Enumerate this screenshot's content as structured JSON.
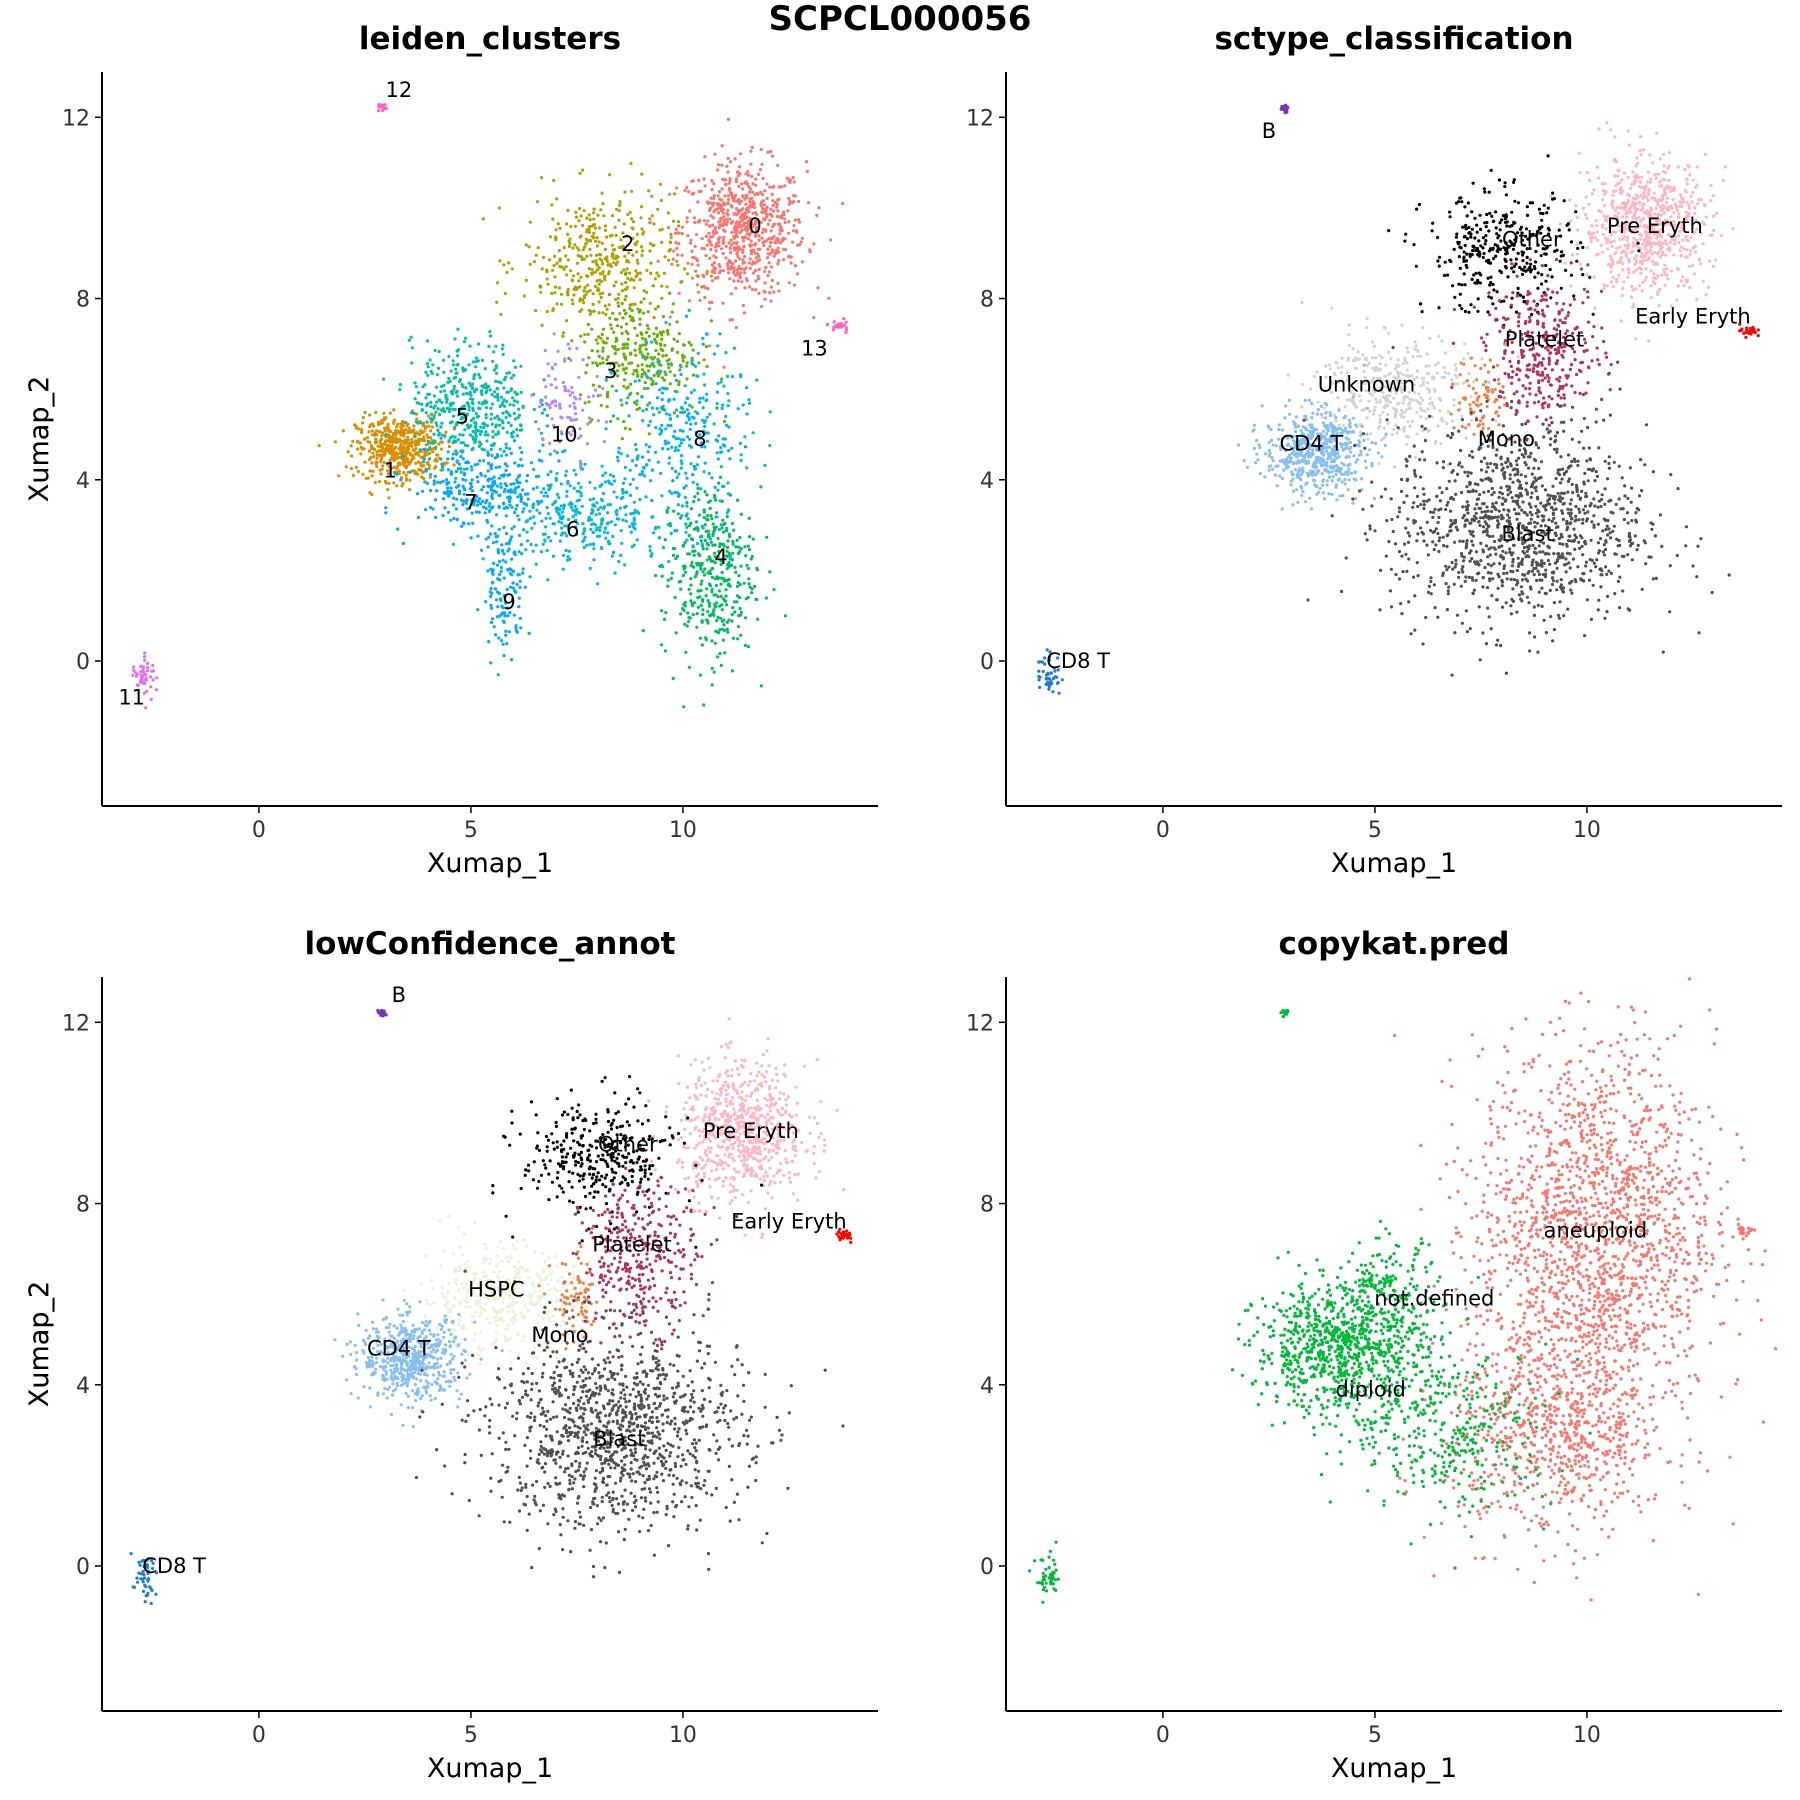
{
  "figure": {
    "title": "SCPCL000056"
  },
  "chart_data": [
    {
      "type": "scatter",
      "title": "leiden_clusters",
      "xlabel": "Xumap_1",
      "ylabel": "Xumap_2",
      "xlim": [
        -3.7,
        14.6
      ],
      "ylim": [
        -3.2,
        13.0
      ],
      "xticks": [
        0,
        5,
        10
      ],
      "yticks": [
        0,
        4,
        8,
        12
      ],
      "grid": false,
      "legend": "none",
      "clusters": [
        {
          "name": "0",
          "color": "#F8766D",
          "cx": 11.4,
          "cy": 9.5,
          "sx": 0.75,
          "sy": 0.75,
          "n": 700
        },
        {
          "name": "1",
          "color": "#DB8E00",
          "cx": 3.3,
          "cy": 4.7,
          "sx": 0.5,
          "sy": 0.35,
          "n": 500
        },
        {
          "name": "2",
          "color": "#AEA200",
          "cx": 8.0,
          "cy": 8.8,
          "sx": 0.9,
          "sy": 0.75,
          "n": 400
        },
        {
          "name": "3",
          "color": "#64B200",
          "cx": 9.0,
          "cy": 6.8,
          "sx": 0.7,
          "sy": 0.7,
          "n": 300
        },
        {
          "name": "4",
          "color": "#00BD5C",
          "cx": 10.6,
          "cy": 2.0,
          "sx": 0.55,
          "sy": 1.0,
          "n": 400
        },
        {
          "name": "5",
          "color": "#00C1A7",
          "cx": 5.0,
          "cy": 5.6,
          "sx": 0.7,
          "sy": 0.7,
          "n": 450
        },
        {
          "name": "6",
          "color": "#00BADE",
          "cx": 7.6,
          "cy": 3.2,
          "sx": 1.1,
          "sy": 0.55,
          "n": 350
        },
        {
          "name": "7",
          "color": "#00A6FF",
          "cx": 5.2,
          "cy": 3.8,
          "sx": 0.8,
          "sy": 0.45,
          "n": 250
        },
        {
          "name": "8",
          "color": "#00B4F0",
          "cx": 10.0,
          "cy": 5.0,
          "sx": 0.8,
          "sy": 1.0,
          "n": 300
        },
        {
          "name": "9",
          "color": "#00A9FF",
          "cx": 5.8,
          "cy": 1.6,
          "sx": 0.25,
          "sy": 0.7,
          "n": 120
        },
        {
          "name": "10",
          "color": "#B385FF",
          "cx": 7.3,
          "cy": 5.8,
          "sx": 0.4,
          "sy": 0.6,
          "n": 90
        },
        {
          "name": "11",
          "color": "#E76BF3",
          "cx": -2.7,
          "cy": -0.3,
          "sx": 0.15,
          "sy": 0.25,
          "n": 45
        },
        {
          "name": "12",
          "color": "#FF61C9",
          "cx": 2.9,
          "cy": 12.2,
          "sx": 0.05,
          "sy": 0.05,
          "n": 14
        },
        {
          "name": "13",
          "color": "#FF62BC",
          "cx": 13.7,
          "cy": 7.4,
          "sx": 0.12,
          "sy": 0.08,
          "n": 20
        }
      ],
      "labels": [
        {
          "text": "0",
          "x": 11.7,
          "y": 9.6
        },
        {
          "text": "1",
          "x": 3.1,
          "y": 4.2
        },
        {
          "text": "2",
          "x": 8.7,
          "y": 9.2
        },
        {
          "text": "3",
          "x": 8.3,
          "y": 6.4
        },
        {
          "text": "4",
          "x": 10.9,
          "y": 2.3
        },
        {
          "text": "5",
          "x": 4.8,
          "y": 5.4
        },
        {
          "text": "6",
          "x": 7.4,
          "y": 2.9
        },
        {
          "text": "7",
          "x": 5.0,
          "y": 3.5
        },
        {
          "text": "8",
          "x": 10.4,
          "y": 4.9
        },
        {
          "text": "9",
          "x": 5.9,
          "y": 1.3
        },
        {
          "text": "10",
          "x": 7.2,
          "y": 5.0
        },
        {
          "text": "11",
          "x": -3.0,
          "y": -0.8
        },
        {
          "text": "12",
          "x": 3.3,
          "y": 12.6
        },
        {
          "text": "13",
          "x": 13.1,
          "y": 6.9
        }
      ]
    },
    {
      "type": "scatter",
      "title": "sctype_classification",
      "xlabel": "Xumap_1",
      "ylabel": "Xumap_2",
      "xlim": [
        -3.7,
        14.6
      ],
      "ylim": [
        -3.2,
        13.0
      ],
      "xticks": [
        0,
        5,
        10
      ],
      "yticks": [
        0,
        4,
        8,
        12
      ],
      "grid": false,
      "legend": "none",
      "clusters": [
        {
          "name": "Pre Eryth",
          "color": "#FFB6C1",
          "cx": 11.4,
          "cy": 9.6,
          "sx": 0.75,
          "sy": 0.75,
          "n": 700
        },
        {
          "name": "Other",
          "color": "#000000",
          "cx": 8.0,
          "cy": 9.0,
          "sx": 0.9,
          "sy": 0.65,
          "n": 350
        },
        {
          "name": "Platelet",
          "color": "#B03060",
          "cx": 9.0,
          "cy": 6.8,
          "sx": 0.7,
          "sy": 0.8,
          "n": 350
        },
        {
          "name": "Unknown",
          "color": "#D3D3D3",
          "cx": 5.4,
          "cy": 6.0,
          "sx": 0.9,
          "sy": 0.6,
          "n": 400
        },
        {
          "name": "CD4 T",
          "color": "#87BFEE",
          "cx": 3.6,
          "cy": 4.6,
          "sx": 0.6,
          "sy": 0.45,
          "n": 550
        },
        {
          "name": "Mono",
          "color": "#F08040",
          "cx": 7.5,
          "cy": 5.8,
          "sx": 0.3,
          "sy": 0.5,
          "n": 80
        },
        {
          "name": "Blast",
          "color": "#505050",
          "cx": 8.4,
          "cy": 3.0,
          "sx": 1.5,
          "sy": 1.1,
          "n": 1200
        },
        {
          "name": "Early Eryth",
          "color": "#FF0000",
          "cx": 13.8,
          "cy": 7.3,
          "sx": 0.1,
          "sy": 0.07,
          "n": 25
        },
        {
          "name": "CD8 T",
          "color": "#1E7CD8",
          "cx": -2.7,
          "cy": -0.3,
          "sx": 0.15,
          "sy": 0.25,
          "n": 45
        },
        {
          "name": "B",
          "color": "#7B2FBE",
          "cx": 2.9,
          "cy": 12.2,
          "sx": 0.05,
          "sy": 0.05,
          "n": 14
        }
      ],
      "labels": [
        {
          "text": "B",
          "x": 2.5,
          "y": 11.7
        },
        {
          "text": "Pre Eryth",
          "x": 11.6,
          "y": 9.6
        },
        {
          "text": "Other",
          "x": 8.7,
          "y": 9.3
        },
        {
          "text": "Early Eryth",
          "x": 12.5,
          "y": 7.6
        },
        {
          "text": "Platelet",
          "x": 9.0,
          "y": 7.1
        },
        {
          "text": "Unknown",
          "x": 4.8,
          "y": 6.1
        },
        {
          "text": "CD4 T",
          "x": 3.5,
          "y": 4.8
        },
        {
          "text": "Mono",
          "x": 8.1,
          "y": 4.9
        },
        {
          "text": "Blast",
          "x": 8.6,
          "y": 2.8
        },
        {
          "text": "CD8 T",
          "x": -2.0,
          "y": 0.0
        }
      ]
    },
    {
      "type": "scatter",
      "title": "lowConfidence_annot",
      "xlabel": "Xumap_1",
      "ylabel": "Xumap_2",
      "xlim": [
        -3.7,
        14.6
      ],
      "ylim": [
        -3.2,
        13.0
      ],
      "xticks": [
        0,
        5,
        10
      ],
      "yticks": [
        0,
        4,
        8,
        12
      ],
      "grid": false,
      "legend": "none",
      "clusters": [
        {
          "name": "Pre Eryth",
          "color": "#FFB6C1",
          "cx": 11.4,
          "cy": 9.6,
          "sx": 0.75,
          "sy": 0.75,
          "n": 700
        },
        {
          "name": "Other",
          "color": "#000000",
          "cx": 8.0,
          "cy": 9.0,
          "sx": 0.9,
          "sy": 0.65,
          "n": 350
        },
        {
          "name": "Platelet",
          "color": "#B03060",
          "cx": 9.0,
          "cy": 6.8,
          "sx": 0.7,
          "sy": 0.8,
          "n": 350
        },
        {
          "name": "HSPC",
          "color": "#EEF0D8",
          "cx": 5.6,
          "cy": 5.9,
          "sx": 0.9,
          "sy": 0.6,
          "n": 400
        },
        {
          "name": "CD4 T",
          "color": "#87BFEE",
          "cx": 3.6,
          "cy": 4.6,
          "sx": 0.6,
          "sy": 0.45,
          "n": 550
        },
        {
          "name": "Mono",
          "color": "#F08040",
          "cx": 7.5,
          "cy": 5.8,
          "sx": 0.3,
          "sy": 0.5,
          "n": 80
        },
        {
          "name": "Blast",
          "color": "#505050",
          "cx": 8.4,
          "cy": 3.0,
          "sx": 1.5,
          "sy": 1.1,
          "n": 1200
        },
        {
          "name": "Early Eryth",
          "color": "#FF0000",
          "cx": 13.8,
          "cy": 7.3,
          "sx": 0.1,
          "sy": 0.07,
          "n": 25
        },
        {
          "name": "CD8 T",
          "color": "#1E7CD8",
          "cx": -2.7,
          "cy": -0.3,
          "sx": 0.15,
          "sy": 0.25,
          "n": 45
        },
        {
          "name": "B",
          "color": "#7B2FBE",
          "cx": 2.9,
          "cy": 12.2,
          "sx": 0.05,
          "sy": 0.05,
          "n": 14
        }
      ],
      "labels": [
        {
          "text": "B",
          "x": 3.3,
          "y": 12.6
        },
        {
          "text": "Pre Eryth",
          "x": 11.6,
          "y": 9.6
        },
        {
          "text": "Other",
          "x": 8.7,
          "y": 9.3
        },
        {
          "text": "Early Eryth",
          "x": 12.5,
          "y": 7.6
        },
        {
          "text": "Platelet",
          "x": 8.8,
          "y": 7.1
        },
        {
          "text": "HSPC",
          "x": 5.6,
          "y": 6.1
        },
        {
          "text": "CD4 T",
          "x": 3.3,
          "y": 4.8
        },
        {
          "text": "Mono",
          "x": 7.1,
          "y": 5.1
        },
        {
          "text": "Blast",
          "x": 8.5,
          "y": 2.8
        },
        {
          "text": "CD8 T",
          "x": -2.0,
          "y": 0.0
        }
      ]
    },
    {
      "type": "scatter",
      "title": "copykat.pred",
      "xlabel": "Xumap_1",
      "ylabel": "Xumap_2",
      "xlim": [
        -3.7,
        14.6
      ],
      "ylim": [
        -3.2,
        13.0
      ],
      "xticks": [
        0,
        5,
        10
      ],
      "yticks": [
        0,
        4,
        8,
        12
      ],
      "grid": false,
      "legend": "none",
      "clusters": [
        {
          "name": "aneuploid",
          "color": "#F8766D",
          "cx": 10.2,
          "cy": 7.5,
          "sx": 1.4,
          "sy": 2.0,
          "n": 1700
        },
        {
          "name": "aneuploid",
          "color": "#F8766D",
          "cx": 9.3,
          "cy": 3.0,
          "sx": 1.3,
          "sy": 1.2,
          "n": 800
        },
        {
          "name": "diploid",
          "color": "#00BA38",
          "cx": 4.2,
          "cy": 4.8,
          "sx": 1.0,
          "sy": 0.7,
          "n": 900
        },
        {
          "name": "diploid",
          "color": "#00BA38",
          "cx": 6.8,
          "cy": 3.0,
          "sx": 1.2,
          "sy": 0.9,
          "n": 350
        },
        {
          "name": "not.defined",
          "color": "#00BA38",
          "cx": 5.3,
          "cy": 6.2,
          "sx": 0.6,
          "sy": 0.5,
          "n": 150
        },
        {
          "name": "diploid",
          "color": "#00BA38",
          "cx": -2.7,
          "cy": -0.3,
          "sx": 0.15,
          "sy": 0.25,
          "n": 45
        },
        {
          "name": "diploid",
          "color": "#00BA38",
          "cx": 2.9,
          "cy": 12.2,
          "sx": 0.05,
          "sy": 0.05,
          "n": 14
        },
        {
          "name": "aneuploid",
          "color": "#F8766D",
          "cx": 13.7,
          "cy": 7.4,
          "sx": 0.12,
          "sy": 0.08,
          "n": 20
        }
      ],
      "labels": [
        {
          "text": "aneuploid",
          "x": 10.2,
          "y": 7.4
        },
        {
          "text": "not.defined",
          "x": 6.4,
          "y": 5.9
        },
        {
          "text": "diploid",
          "x": 4.9,
          "y": 3.9
        }
      ]
    }
  ]
}
